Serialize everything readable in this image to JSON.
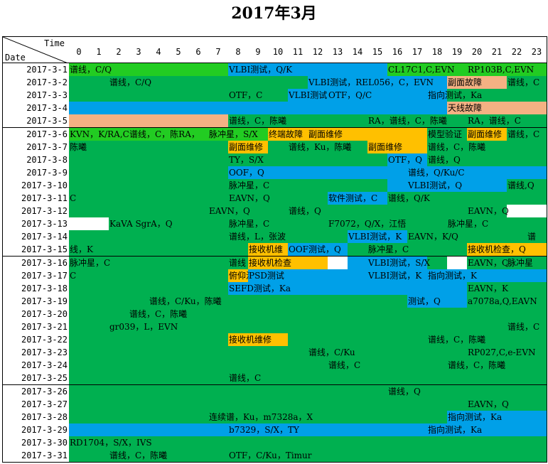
{
  "title": "2017年3月",
  "header": {
    "time_label": "Time",
    "date_label": "Date"
  },
  "hours": [
    "0",
    "1",
    "2",
    "3",
    "4",
    "5",
    "6",
    "7",
    "8",
    "9",
    "10",
    "11",
    "12",
    "13",
    "14",
    "15",
    "16",
    "17",
    "18",
    "19",
    "20",
    "21",
    "22",
    "23"
  ],
  "colors": {
    "G": "#00B050",
    "L": "#22CC22",
    "B": "#00A0E8",
    "O": "#FFC000",
    "P": "#F4B183",
    "W": "#FFFFFF"
  },
  "rows": [
    {
      "date": "2017-3-1",
      "segs": [
        [
          "L",
          0,
          8
        ],
        [
          "B",
          8,
          16
        ],
        [
          "L",
          16,
          24
        ]
      ],
      "labels": [
        [
          0,
          "谱线，C/Q"
        ],
        [
          8,
          "VLBI测试，Q/K"
        ],
        [
          16,
          "CL17C1,C,EVN"
        ],
        [
          20,
          "RP103B,C,EVN"
        ]
      ]
    },
    {
      "date": "2017-3-2",
      "segs": [
        [
          "G",
          0,
          12
        ],
        [
          "B",
          12,
          19
        ],
        [
          "P",
          19,
          22
        ],
        [
          "G",
          22,
          24
        ]
      ],
      "labels": [
        [
          2,
          "谱线，C/Q"
        ],
        [
          12,
          "VLBI测试，REL056，C，EVN"
        ],
        [
          19,
          "副面故障"
        ],
        [
          22,
          "谱线，C"
        ]
      ]
    },
    {
      "date": "2017-3-3",
      "segs": [
        [
          "G",
          0,
          11
        ],
        [
          "B",
          11,
          19
        ],
        [
          "G",
          19,
          24
        ]
      ],
      "labels": [
        [
          8,
          "OTF，C"
        ],
        [
          11,
          "VLBI测试"
        ],
        [
          13,
          "OTF，Q/C"
        ],
        [
          18,
          "指向测试，Ka"
        ]
      ]
    },
    {
      "date": "2017-3-4",
      "segs": [
        [
          "B",
          0,
          19
        ],
        [
          "P",
          19,
          24
        ]
      ],
      "labels": [
        [
          19,
          "天线故障"
        ]
      ]
    },
    {
      "date": "2017-3-5",
      "segs": [
        [
          "P",
          0,
          8
        ],
        [
          "G",
          8,
          24
        ]
      ],
      "labels": [
        [
          8,
          "谱线，C，陈曦"
        ],
        [
          15,
          "RA，谱线，C，陈曦"
        ],
        [
          20,
          "RA，谱线，C"
        ]
      ]
    },
    {
      "date": "2017-3-6",
      "segs": [
        [
          "L",
          0,
          10
        ],
        [
          "O",
          10,
          18
        ],
        [
          "G",
          18,
          20
        ],
        [
          "O",
          20,
          22
        ],
        [
          "G",
          22,
          24
        ]
      ],
      "labels": [
        [
          0,
          "KVN，K/RA,C"
        ],
        [
          3,
          "谱线，C，陈RA，"
        ],
        [
          7,
          "脉冲星，S/X"
        ],
        [
          10,
          "终端故障"
        ],
        [
          12,
          "副面维修"
        ],
        [
          18,
          "模型验证"
        ],
        [
          20,
          "副面维修"
        ],
        [
          22,
          "谱线，C"
        ]
      ]
    },
    {
      "date": "2017-3-7",
      "segs": [
        [
          "G",
          0,
          8
        ],
        [
          "O",
          8,
          10
        ],
        [
          "G",
          10,
          15
        ],
        [
          "O",
          15,
          18
        ],
        [
          "G",
          18,
          24
        ]
      ],
      "labels": [
        [
          0,
          "陈曦"
        ],
        [
          8,
          "副面维修"
        ],
        [
          11,
          "谱线，Ku，陈曦"
        ],
        [
          15,
          "副面维修"
        ],
        [
          18,
          "谱线，C，陈曦"
        ]
      ]
    },
    {
      "date": "2017-3-8",
      "segs": [
        [
          "G",
          0,
          16
        ],
        [
          "B",
          16,
          18
        ],
        [
          "G",
          18,
          24
        ]
      ],
      "labels": [
        [
          8,
          "TY，S/X"
        ],
        [
          16,
          "OTF，Q"
        ],
        [
          18,
          "谱线，Q"
        ]
      ]
    },
    {
      "date": "2017-3-9",
      "segs": [
        [
          "G",
          0,
          8
        ],
        [
          "B",
          8,
          24
        ]
      ],
      "labels": [
        [
          8,
          "OOF，Q"
        ],
        [
          17,
          "谱线，Q/Ku/C"
        ]
      ]
    },
    {
      "date": "2017-3-10",
      "segs": [
        [
          "G",
          0,
          16
        ],
        [
          "B",
          16,
          22
        ],
        [
          "G",
          22,
          24
        ]
      ],
      "labels": [
        [
          8,
          "脉冲星，C"
        ],
        [
          17,
          "VLBI测试，Q"
        ],
        [
          22,
          "谱线,Q"
        ]
      ]
    },
    {
      "date": "2017-3-11",
      "segs": [
        [
          "G",
          0,
          13
        ],
        [
          "B",
          13,
          16
        ],
        [
          "G",
          16,
          24
        ]
      ],
      "labels": [
        [
          0,
          "C"
        ],
        [
          8,
          "EAVN，Q"
        ],
        [
          13,
          "软件测试，C"
        ],
        [
          16,
          "谱线，Q/K"
        ]
      ]
    },
    {
      "date": "2017-3-12",
      "segs": [
        [
          "G",
          0,
          22
        ],
        [
          "W",
          22,
          24
        ]
      ],
      "labels": [
        [
          7,
          "EAVN，Q"
        ],
        [
          11,
          "谱线，Q"
        ],
        [
          20,
          "EAVN，Q"
        ]
      ]
    },
    {
      "date": "2017-3-13",
      "segs": [
        [
          "W",
          0,
          2
        ],
        [
          "G",
          2,
          24
        ]
      ],
      "labels": [
        [
          2,
          "KaVA SgrA，Q"
        ],
        [
          8,
          "脉冲星，C"
        ],
        [
          13,
          "F7072，Q/X，江悟"
        ],
        [
          19,
          "脉冲星，C"
        ]
      ]
    },
    {
      "date": "2017-3-14",
      "segs": [
        [
          "G",
          0,
          14
        ],
        [
          "B",
          14,
          17
        ],
        [
          "G",
          17,
          24
        ]
      ],
      "labels": [
        [
          8,
          "谱线，L，张波"
        ],
        [
          14,
          "VLBI测试，K"
        ],
        [
          17,
          "EAVN，K/Q"
        ],
        [
          23,
          "谱"
        ]
      ]
    },
    {
      "date": "2017-3-15",
      "segs": [
        [
          "G",
          0,
          9
        ],
        [
          "O",
          9,
          11
        ],
        [
          "B",
          11,
          14
        ],
        [
          "G",
          14,
          20
        ],
        [
          "O",
          20,
          24
        ]
      ],
      "labels": [
        [
          0,
          "线，K"
        ],
        [
          9,
          "接收机维"
        ],
        [
          11,
          "OOF测试，Q"
        ],
        [
          15,
          "脉冲星，C"
        ],
        [
          20,
          "接收机检查，Q"
        ]
      ]
    },
    {
      "date": "2017-3-16",
      "segs": [
        [
          "G",
          0,
          9
        ],
        [
          "O",
          9,
          13
        ],
        [
          "W",
          13,
          14
        ],
        [
          "B",
          14,
          18
        ],
        [
          "G",
          18,
          19
        ],
        [
          "W",
          19,
          20
        ],
        [
          "G",
          20,
          24
        ]
      ],
      "labels": [
        [
          0,
          "脉冲星，C"
        ],
        [
          8,
          "谱线"
        ],
        [
          9,
          "接收机检查"
        ],
        [
          15,
          "VLBI测试，S/X"
        ],
        [
          20,
          "EAVN，Q"
        ],
        [
          22,
          "脉冲星"
        ]
      ]
    },
    {
      "date": "2017-3-17",
      "segs": [
        [
          "G",
          0,
          8
        ],
        [
          "O",
          8,
          9
        ],
        [
          "B",
          9,
          24
        ]
      ],
      "labels": [
        [
          0,
          "C"
        ],
        [
          8,
          "俯仰涂油"
        ],
        [
          9,
          "PSD测试"
        ],
        [
          15,
          "VLBI测试，K"
        ],
        [
          18,
          "指向测试，K"
        ]
      ]
    },
    {
      "date": "2017-3-18",
      "segs": [
        [
          "G",
          0,
          8
        ],
        [
          "B",
          8,
          20
        ],
        [
          "G",
          20,
          24
        ]
      ],
      "labels": [
        [
          8,
          "SEFD测试，Ka"
        ],
        [
          20,
          "EAVN，K"
        ]
      ]
    },
    {
      "date": "2017-3-19",
      "segs": [
        [
          "G",
          0,
          17
        ],
        [
          "B",
          17,
          20
        ],
        [
          "G",
          20,
          24
        ]
      ],
      "labels": [
        [
          4,
          "谱线，C/Ku，陈曦"
        ],
        [
          17,
          "测试，Q"
        ],
        [
          20,
          "a7078a,Q,EAVN"
        ]
      ]
    },
    {
      "date": "2017-3-20",
      "segs": [
        [
          "G",
          0,
          24
        ]
      ],
      "labels": [
        [
          3,
          "谱线，C，陈曦"
        ]
      ]
    },
    {
      "date": "2017-3-21",
      "segs": [
        [
          "G",
          0,
          24
        ]
      ],
      "labels": [
        [
          2,
          "gr039，L，EVN"
        ],
        [
          22,
          "谱线，C"
        ]
      ]
    },
    {
      "date": "2017-3-22",
      "segs": [
        [
          "G",
          0,
          8
        ],
        [
          "O",
          8,
          11
        ],
        [
          "G",
          11,
          24
        ]
      ],
      "labels": [
        [
          8,
          "接收机维修"
        ],
        [
          18,
          "谱线，C，陈曦"
        ]
      ]
    },
    {
      "date": "2017-3-23",
      "segs": [
        [
          "G",
          0,
          24
        ]
      ],
      "labels": [
        [
          12,
          "谱线，C/Ku"
        ],
        [
          20,
          "RP027,C,e-EVN"
        ]
      ]
    },
    {
      "date": "2017-3-24",
      "segs": [
        [
          "G",
          0,
          24
        ]
      ],
      "labels": [
        [
          13,
          "谱线，C"
        ],
        [
          19,
          "谱线，C，陈曦"
        ]
      ]
    },
    {
      "date": "2017-3-25",
      "segs": [
        [
          "G",
          0,
          24
        ]
      ],
      "labels": [
        [
          8,
          "谱线，C"
        ]
      ]
    },
    {
      "date": "2017-3-26",
      "segs": [
        [
          "G",
          0,
          24
        ]
      ],
      "labels": [
        [
          16,
          "谱线，Q"
        ]
      ]
    },
    {
      "date": "2017-3-27",
      "segs": [
        [
          "G",
          0,
          24
        ]
      ],
      "labels": [
        [
          20,
          "EAVN，Q"
        ]
      ]
    },
    {
      "date": "2017-3-28",
      "segs": [
        [
          "G",
          0,
          19
        ],
        [
          "B",
          19,
          24
        ]
      ],
      "labels": [
        [
          7,
          "连续谱，Ku，m7328a，X"
        ],
        [
          19,
          "指向测试，Ka"
        ]
      ]
    },
    {
      "date": "2017-3-29",
      "segs": [
        [
          "B",
          0,
          24
        ]
      ],
      "labels": [
        [
          8,
          "b7329，S/X，TY"
        ],
        [
          18,
          "指向测试，Ka"
        ]
      ]
    },
    {
      "date": "2017-3-30",
      "segs": [
        [
          "G",
          0,
          24
        ]
      ],
      "labels": [
        [
          0,
          "RD1704，S/X，IVS"
        ]
      ]
    },
    {
      "date": "2017-3-31",
      "segs": [
        [
          "G",
          0,
          24
        ]
      ],
      "labels": [
        [
          2,
          "谱线，C，陈曦"
        ],
        [
          8,
          "OTF，C/Ku，Timur"
        ]
      ]
    }
  ]
}
